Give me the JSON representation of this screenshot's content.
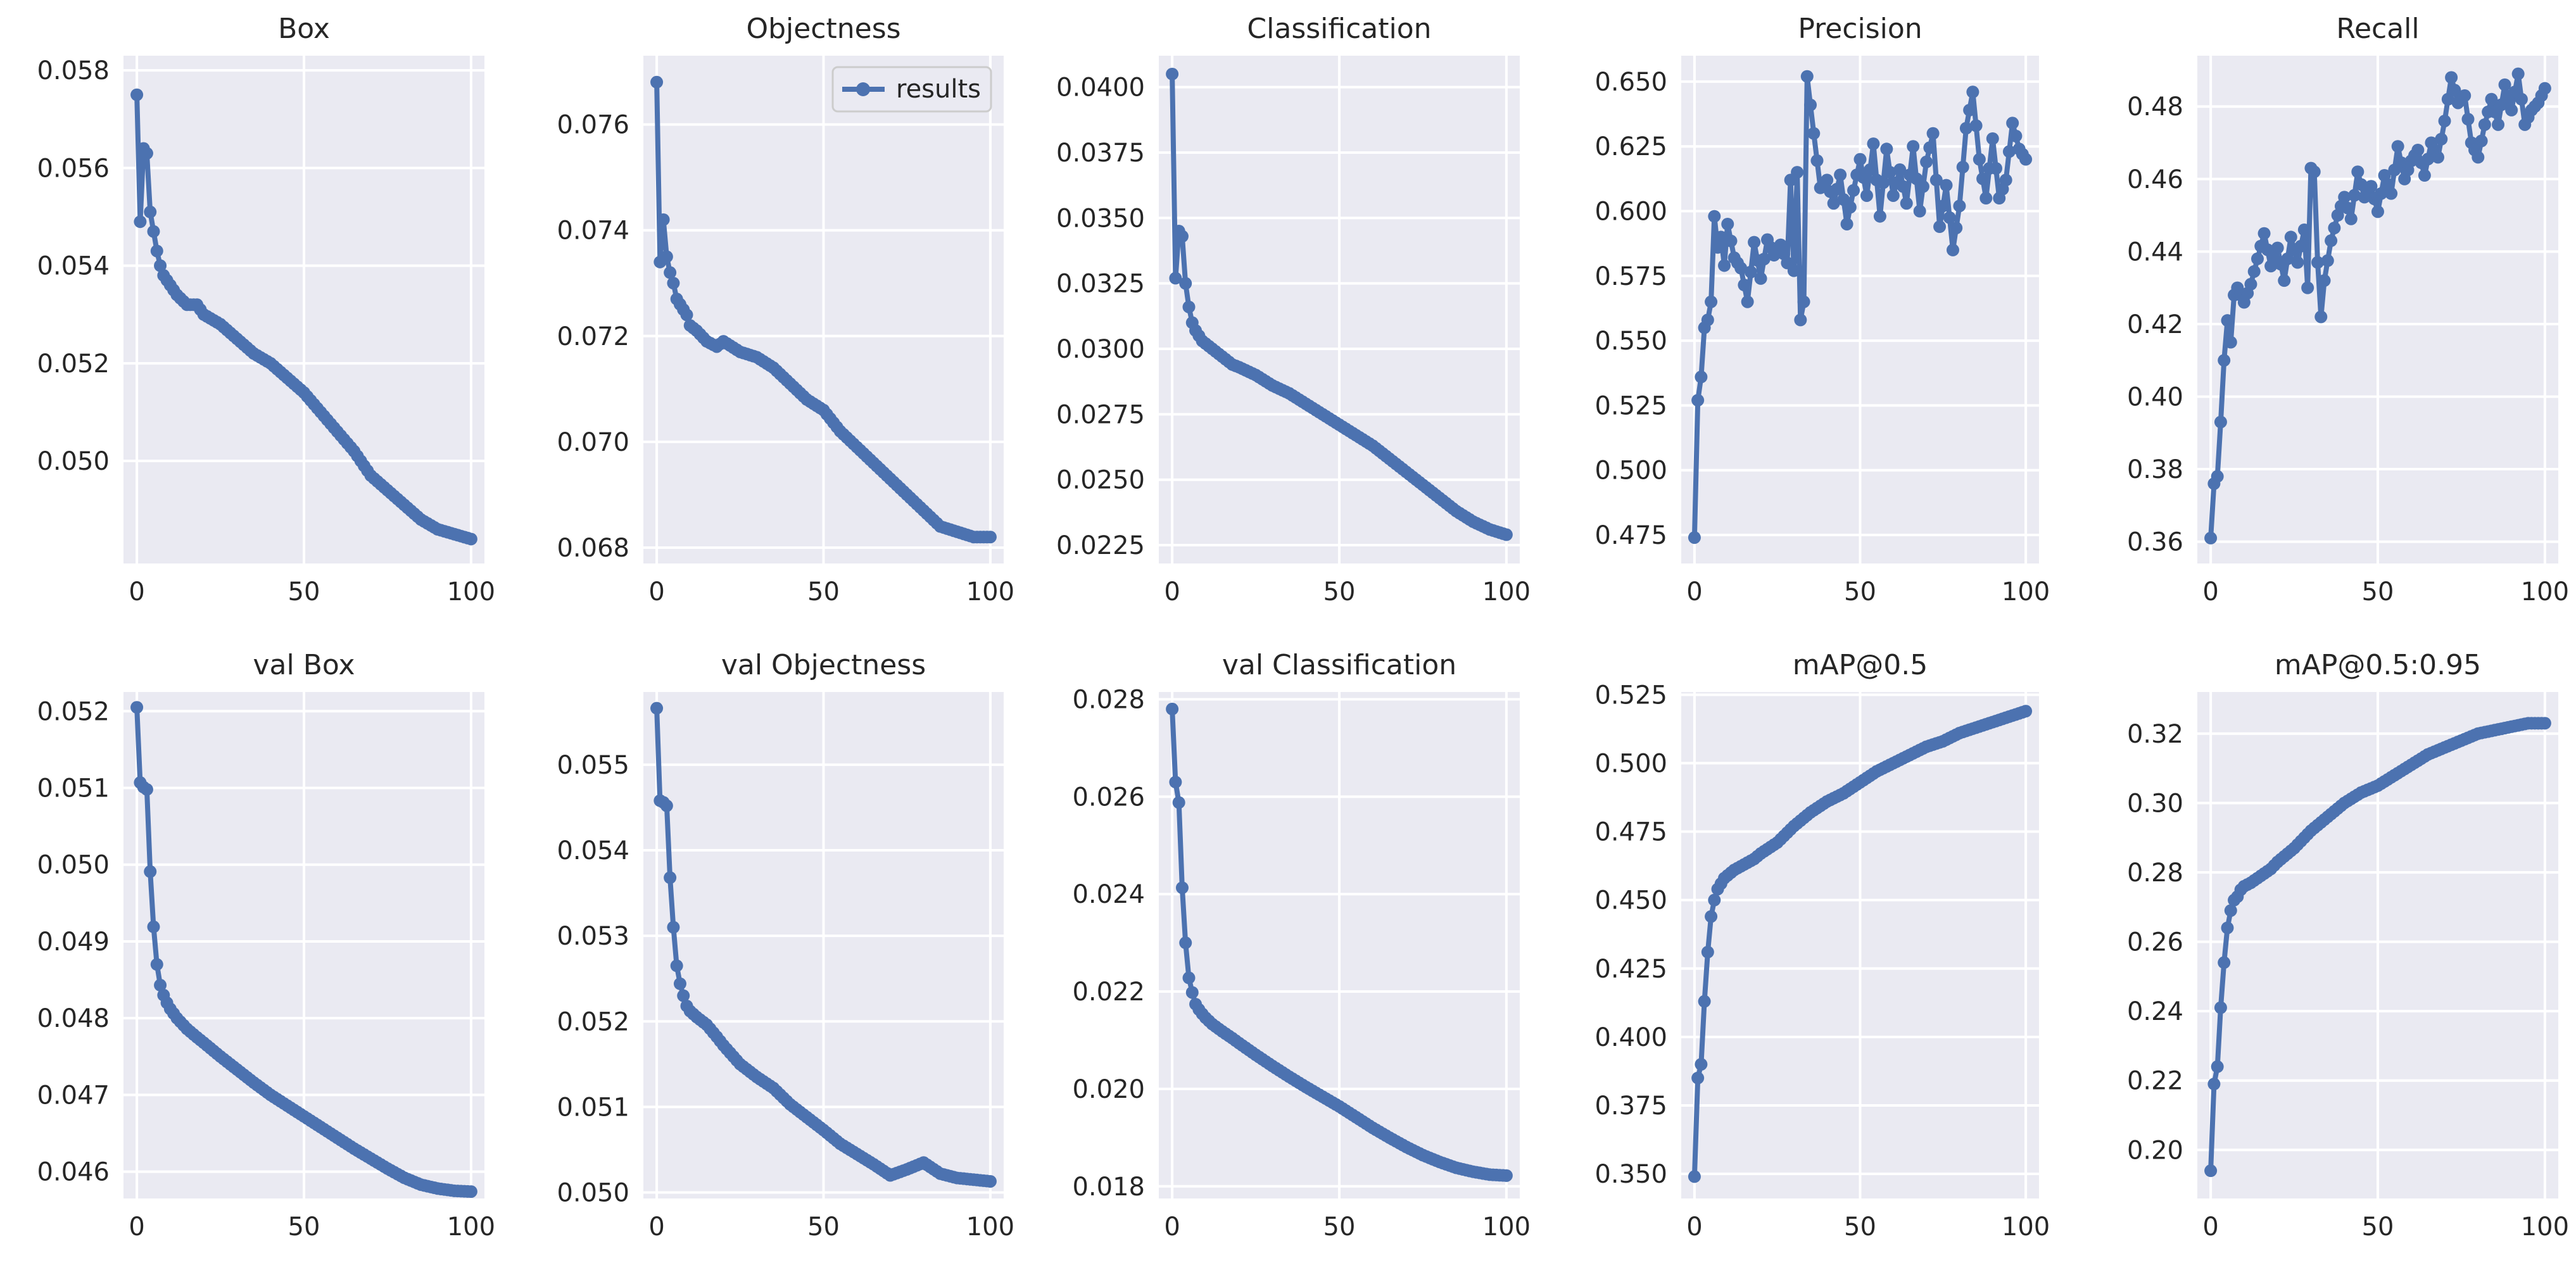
{
  "colors": {
    "panel_bg": "#EAEAF2",
    "grid": "#FFFFFF",
    "line": "#4C72B0",
    "text": "#262626"
  },
  "legend_label": "results",
  "chart_data": [
    {
      "type": "line",
      "title": "Box",
      "legend": false,
      "xlim": [
        -4,
        104
      ],
      "ylim": [
        0.0479,
        0.0583
      ],
      "xticks": [
        0,
        50,
        100
      ],
      "yticks": [
        0.05,
        0.052,
        0.054,
        0.056,
        0.058
      ],
      "yticklabels": [
        "0.050",
        "0.052",
        "0.054",
        "0.056",
        "0.058"
      ],
      "key_x": [
        0,
        1,
        2,
        3,
        4,
        5,
        6,
        7,
        8,
        9,
        10,
        12,
        15,
        18,
        20,
        25,
        30,
        35,
        40,
        45,
        50,
        55,
        60,
        65,
        70,
        75,
        80,
        85,
        90,
        95,
        100
      ],
      "key_y": [
        0.0575,
        0.0549,
        0.0564,
        0.0563,
        0.0551,
        0.0547,
        0.0543,
        0.054,
        0.0538,
        0.0537,
        0.0536,
        0.0534,
        0.0532,
        0.0532,
        0.053,
        0.0528,
        0.0525,
        0.0522,
        0.052,
        0.0517,
        0.0514,
        0.051,
        0.0506,
        0.0502,
        0.0497,
        0.0494,
        0.0491,
        0.0488,
        0.0486,
        0.0485,
        0.0484
      ]
    },
    {
      "type": "line",
      "title": "Objectness",
      "legend": true,
      "xlim": [
        -4,
        104
      ],
      "ylim": [
        0.0677,
        0.0773
      ],
      "xticks": [
        0,
        50,
        100
      ],
      "yticks": [
        0.068,
        0.07,
        0.072,
        0.074,
        0.076
      ],
      "yticklabels": [
        "0.068",
        "0.070",
        "0.072",
        "0.074",
        "0.076"
      ],
      "key_x": [
        0,
        1,
        2,
        3,
        4,
        5,
        6,
        7,
        8,
        9,
        10,
        12,
        15,
        18,
        20,
        25,
        30,
        35,
        40,
        45,
        50,
        55,
        60,
        65,
        70,
        75,
        80,
        85,
        90,
        95,
        100
      ],
      "key_y": [
        0.0768,
        0.0734,
        0.0742,
        0.0735,
        0.0732,
        0.073,
        0.0727,
        0.0726,
        0.0725,
        0.0724,
        0.0722,
        0.0721,
        0.0719,
        0.0718,
        0.0719,
        0.0717,
        0.0716,
        0.0714,
        0.0711,
        0.0708,
        0.0706,
        0.0702,
        0.0699,
        0.0696,
        0.0693,
        0.069,
        0.0687,
        0.0684,
        0.0683,
        0.0682,
        0.0682
      ]
    },
    {
      "type": "line",
      "title": "Classification",
      "legend": false,
      "xlim": [
        -4,
        104
      ],
      "ylim": [
        0.0218,
        0.0412
      ],
      "xticks": [
        0,
        50,
        100
      ],
      "yticks": [
        0.0225,
        0.025,
        0.0275,
        0.03,
        0.0325,
        0.035,
        0.0375,
        0.04
      ],
      "yticklabels": [
        "0.0225",
        "0.0250",
        "0.0275",
        "0.0300",
        "0.0325",
        "0.0350",
        "0.0375",
        "0.0400"
      ],
      "key_x": [
        0,
        1,
        2,
        3,
        4,
        5,
        6,
        7,
        8,
        9,
        10,
        12,
        15,
        18,
        20,
        25,
        30,
        35,
        40,
        45,
        50,
        55,
        60,
        65,
        70,
        75,
        80,
        85,
        90,
        95,
        100
      ],
      "key_y": [
        0.0405,
        0.0327,
        0.0345,
        0.0343,
        0.0325,
        0.0316,
        0.031,
        0.0307,
        0.0305,
        0.0303,
        0.0302,
        0.03,
        0.0297,
        0.0294,
        0.0293,
        0.029,
        0.0286,
        0.0283,
        0.0279,
        0.0275,
        0.0271,
        0.0267,
        0.0263,
        0.0258,
        0.0253,
        0.0248,
        0.0243,
        0.0238,
        0.0234,
        0.0231,
        0.0229
      ]
    },
    {
      "type": "line",
      "title": "Precision",
      "legend": false,
      "xlim": [
        -4,
        104
      ],
      "ylim": [
        0.464,
        0.66
      ],
      "xticks": [
        0,
        50,
        100
      ],
      "yticks": [
        0.475,
        0.5,
        0.525,
        0.55,
        0.575,
        0.6,
        0.625,
        0.65
      ],
      "yticklabels": [
        "0.475",
        "0.500",
        "0.525",
        "0.550",
        "0.575",
        "0.600",
        "0.625",
        "0.650"
      ],
      "key_x": [
        0,
        1,
        2,
        3,
        4,
        5,
        6,
        7,
        8,
        9,
        10,
        12,
        14,
        16,
        18,
        20,
        22,
        24,
        26,
        28,
        29,
        30,
        31,
        32,
        33,
        34,
        36,
        38,
        40,
        42,
        44,
        46,
        48,
        50,
        52,
        54,
        56,
        58,
        60,
        62,
        64,
        66,
        68,
        70,
        72,
        74,
        76,
        78,
        80,
        82,
        84,
        86,
        88,
        90,
        92,
        94,
        96,
        98,
        100
      ],
      "key_y": [
        0.474,
        0.527,
        0.536,
        0.555,
        0.558,
        0.565,
        0.598,
        0.586,
        0.59,
        0.579,
        0.595,
        0.582,
        0.578,
        0.565,
        0.588,
        0.574,
        0.589,
        0.583,
        0.587,
        0.58,
        0.612,
        0.577,
        0.615,
        0.558,
        0.565,
        0.652,
        0.63,
        0.609,
        0.612,
        0.603,
        0.614,
        0.595,
        0.608,
        0.62,
        0.606,
        0.626,
        0.598,
        0.624,
        0.606,
        0.616,
        0.603,
        0.625,
        0.6,
        0.619,
        0.63,
        0.594,
        0.61,
        0.585,
        0.602,
        0.632,
        0.646,
        0.62,
        0.605,
        0.628,
        0.605,
        0.612,
        0.634,
        0.624,
        0.62
      ]
    },
    {
      "type": "line",
      "title": "Recall",
      "legend": false,
      "xlim": [
        -4,
        104
      ],
      "ylim": [
        0.354,
        0.494
      ],
      "xticks": [
        0,
        50,
        100
      ],
      "yticks": [
        0.36,
        0.38,
        0.4,
        0.42,
        0.44,
        0.46,
        0.48
      ],
      "yticklabels": [
        "0.36",
        "0.38",
        "0.40",
        "0.42",
        "0.44",
        "0.46",
        "0.48"
      ],
      "key_x": [
        0,
        1,
        2,
        3,
        4,
        5,
        6,
        7,
        8,
        9,
        10,
        12,
        14,
        16,
        18,
        20,
        22,
        24,
        26,
        28,
        29,
        30,
        31,
        32,
        33,
        34,
        36,
        38,
        40,
        42,
        44,
        46,
        48,
        50,
        52,
        54,
        56,
        58,
        60,
        62,
        64,
        66,
        68,
        70,
        72,
        74,
        76,
        78,
        80,
        82,
        84,
        86,
        88,
        90,
        92,
        94,
        96,
        98,
        100
      ],
      "key_y": [
        0.361,
        0.376,
        0.378,
        0.393,
        0.41,
        0.421,
        0.415,
        0.428,
        0.43,
        0.428,
        0.426,
        0.431,
        0.438,
        0.445,
        0.436,
        0.441,
        0.432,
        0.444,
        0.437,
        0.446,
        0.43,
        0.463,
        0.462,
        0.437,
        0.422,
        0.432,
        0.443,
        0.45,
        0.455,
        0.449,
        0.462,
        0.455,
        0.458,
        0.451,
        0.461,
        0.456,
        0.469,
        0.46,
        0.465,
        0.468,
        0.461,
        0.47,
        0.466,
        0.476,
        0.488,
        0.481,
        0.483,
        0.47,
        0.466,
        0.475,
        0.482,
        0.475,
        0.486,
        0.479,
        0.489,
        0.475,
        0.479,
        0.481,
        0.485
      ]
    },
    {
      "type": "line",
      "title": "val Box",
      "legend": false,
      "xlim": [
        -4,
        104
      ],
      "ylim": [
        0.04565,
        0.05225
      ],
      "xticks": [
        0,
        50,
        100
      ],
      "yticks": [
        0.046,
        0.047,
        0.048,
        0.049,
        0.05,
        0.051,
        0.052
      ],
      "yticklabels": [
        "0.046",
        "0.047",
        "0.048",
        "0.049",
        "0.050",
        "0.051",
        "0.052"
      ],
      "key_x": [
        0,
        1,
        2,
        3,
        4,
        5,
        6,
        7,
        8,
        9,
        10,
        12,
        15,
        18,
        20,
        25,
        30,
        35,
        40,
        45,
        50,
        55,
        60,
        65,
        70,
        75,
        80,
        85,
        90,
        95,
        100
      ],
      "key_y": [
        0.05205,
        0.05107,
        0.05101,
        0.05098,
        0.04991,
        0.04919,
        0.0487,
        0.04843,
        0.0483,
        0.0482,
        0.04812,
        0.048,
        0.04786,
        0.04775,
        0.04768,
        0.0475,
        0.04733,
        0.04716,
        0.047,
        0.04686,
        0.04672,
        0.04658,
        0.04644,
        0.0463,
        0.04617,
        0.04604,
        0.04592,
        0.04583,
        0.04578,
        0.04575,
        0.04574
      ]
    },
    {
      "type": "line",
      "title": "val Objectness",
      "legend": false,
      "xlim": [
        -4,
        104
      ],
      "ylim": [
        0.04993,
        0.05585
      ],
      "xticks": [
        0,
        50,
        100
      ],
      "yticks": [
        0.05,
        0.051,
        0.052,
        0.053,
        0.054,
        0.055
      ],
      "yticklabels": [
        "0.050",
        "0.051",
        "0.052",
        "0.053",
        "0.054",
        "0.055"
      ],
      "key_x": [
        0,
        1,
        2,
        3,
        4,
        5,
        6,
        7,
        8,
        9,
        10,
        12,
        15,
        18,
        20,
        25,
        30,
        35,
        40,
        45,
        50,
        55,
        60,
        65,
        70,
        75,
        80,
        85,
        90,
        95,
        100
      ],
      "key_y": [
        0.05566,
        0.05458,
        0.05456,
        0.05452,
        0.05368,
        0.0531,
        0.05265,
        0.05244,
        0.0523,
        0.05218,
        0.05212,
        0.05205,
        0.05196,
        0.05182,
        0.05172,
        0.0515,
        0.05135,
        0.05122,
        0.05103,
        0.05088,
        0.05073,
        0.05057,
        0.05045,
        0.05033,
        0.0502,
        0.05027,
        0.05035,
        0.05022,
        0.05017,
        0.05015,
        0.05013
      ]
    },
    {
      "type": "line",
      "title": "val Classification",
      "legend": false,
      "xlim": [
        -4,
        104
      ],
      "ylim": [
        0.01775,
        0.02815
      ],
      "xticks": [
        0,
        50,
        100
      ],
      "yticks": [
        0.018,
        0.02,
        0.022,
        0.024,
        0.026,
        0.028
      ],
      "yticklabels": [
        "0.018",
        "0.020",
        "0.022",
        "0.024",
        "0.026",
        "0.028"
      ],
      "key_x": [
        0,
        1,
        2,
        3,
        4,
        5,
        6,
        7,
        8,
        9,
        10,
        12,
        15,
        18,
        20,
        25,
        30,
        35,
        40,
        45,
        50,
        55,
        60,
        65,
        70,
        75,
        80,
        85,
        90,
        95,
        100
      ],
      "key_y": [
        0.0278,
        0.0263,
        0.02588,
        0.02413,
        0.023,
        0.02228,
        0.02198,
        0.02174,
        0.02163,
        0.02154,
        0.02146,
        0.02133,
        0.02118,
        0.02104,
        0.02094,
        0.0207,
        0.02047,
        0.02025,
        0.02004,
        0.01984,
        0.01964,
        0.01942,
        0.0192,
        0.019,
        0.01881,
        0.01864,
        0.0185,
        0.01838,
        0.0183,
        0.01824,
        0.01822
      ]
    },
    {
      "type": "line",
      "title": "mAP@0.5",
      "legend": false,
      "xlim": [
        -4,
        104
      ],
      "ylim": [
        0.341,
        0.526
      ],
      "xticks": [
        0,
        50,
        100
      ],
      "yticks": [
        0.35,
        0.375,
        0.4,
        0.425,
        0.45,
        0.475,
        0.5,
        0.525
      ],
      "yticklabels": [
        "0.350",
        "0.375",
        "0.400",
        "0.425",
        "0.450",
        "0.475",
        "0.500",
        "0.525"
      ],
      "key_x": [
        0,
        1,
        2,
        3,
        4,
        5,
        6,
        7,
        8,
        9,
        10,
        12,
        15,
        18,
        20,
        25,
        30,
        35,
        40,
        45,
        50,
        55,
        60,
        65,
        70,
        75,
        80,
        85,
        90,
        95,
        100
      ],
      "key_y": [
        0.349,
        0.385,
        0.39,
        0.413,
        0.431,
        0.444,
        0.45,
        0.454,
        0.456,
        0.458,
        0.459,
        0.461,
        0.463,
        0.465,
        0.467,
        0.471,
        0.477,
        0.482,
        0.486,
        0.489,
        0.493,
        0.497,
        0.5,
        0.503,
        0.506,
        0.508,
        0.511,
        0.513,
        0.515,
        0.517,
        0.519
      ]
    },
    {
      "type": "line",
      "title": "mAP@0.5:0.95",
      "legend": false,
      "xlim": [
        -4,
        104
      ],
      "ylim": [
        0.186,
        0.332
      ],
      "xticks": [
        0,
        50,
        100
      ],
      "yticks": [
        0.2,
        0.22,
        0.24,
        0.26,
        0.28,
        0.3,
        0.32
      ],
      "yticklabels": [
        "0.20",
        "0.22",
        "0.24",
        "0.26",
        "0.28",
        "0.30",
        "0.32"
      ],
      "key_x": [
        0,
        1,
        2,
        3,
        4,
        5,
        6,
        7,
        8,
        9,
        10,
        12,
        15,
        18,
        20,
        25,
        30,
        35,
        40,
        45,
        50,
        55,
        60,
        65,
        70,
        75,
        80,
        85,
        90,
        95,
        100
      ],
      "key_y": [
        0.194,
        0.219,
        0.224,
        0.241,
        0.254,
        0.264,
        0.269,
        0.272,
        0.273,
        0.275,
        0.276,
        0.277,
        0.279,
        0.281,
        0.283,
        0.287,
        0.292,
        0.296,
        0.3,
        0.303,
        0.305,
        0.308,
        0.311,
        0.314,
        0.316,
        0.318,
        0.32,
        0.321,
        0.322,
        0.323,
        0.323
      ]
    }
  ]
}
